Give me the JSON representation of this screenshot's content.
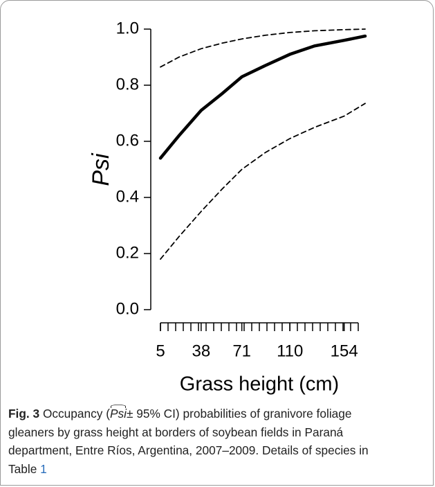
{
  "chart_data": {
    "type": "line",
    "ylabel": "Psi",
    "xlabel": "Grass height  (cm)",
    "xlim": [
      5,
      171
    ],
    "ylim": [
      0,
      1
    ],
    "xticks": [
      5,
      38,
      71,
      110,
      154
    ],
    "yticks": [
      {
        "value": 0,
        "label": "0.0"
      },
      {
        "value": 0.2,
        "label": "0.2"
      },
      {
        "value": 0.4,
        "label": "0.4"
      },
      {
        "value": 0.6,
        "label": "0.6"
      },
      {
        "value": 0.8,
        "label": "0.8"
      },
      {
        "value": 1,
        "label": "1.0"
      }
    ],
    "x": [
      5,
      20,
      38,
      55,
      71,
      90,
      110,
      130,
      154,
      171
    ],
    "series": [
      {
        "color": "#000000",
        "dashed": false,
        "values": [
          0.54,
          0.62,
          0.71,
          0.77,
          0.83,
          0.87,
          0.91,
          0.94,
          0.96,
          0.975
        ]
      },
      {
        "color": "#000000",
        "dashed": true,
        "values": [
          0.865,
          0.9,
          0.93,
          0.95,
          0.965,
          0.978,
          0.988,
          0.994,
          0.998,
          1.0
        ]
      },
      {
        "color": "#000000",
        "dashed": true,
        "values": [
          0.18,
          0.26,
          0.35,
          0.43,
          0.5,
          0.56,
          0.61,
          0.65,
          0.69,
          0.735
        ]
      }
    ]
  },
  "caption": {
    "label": "Fig. 3",
    "before": " Occupancy (",
    "psi": "Psi",
    "after": "± 95% CI) probabilities of granivore foliage",
    "line2": "gleaners by grass height at borders of soybean fields in Paraná",
    "line3": "department, Entre Ríos, Argentina, 2007–2009. Details of species in",
    "line4": "Table ",
    "link": "1"
  }
}
